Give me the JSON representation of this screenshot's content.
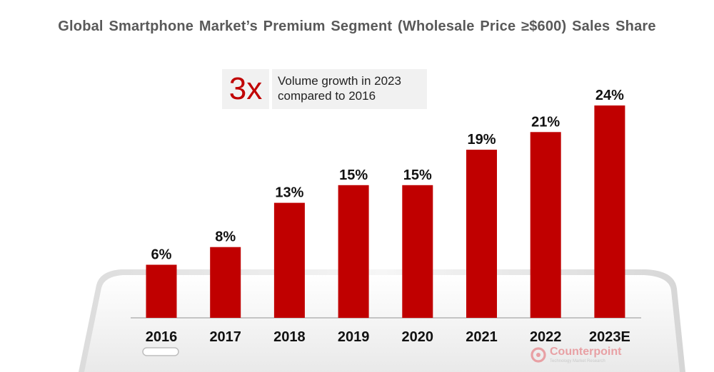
{
  "chart_data": {
    "type": "bar",
    "title": "Global Smartphone Market’s Premium Segment (Wholesale Price ≥$600) Sales Share",
    "categories": [
      "2016",
      "2017",
      "2018",
      "2019",
      "2020",
      "2021",
      "2022",
      "2023E"
    ],
    "values": [
      6,
      8,
      13,
      15,
      15,
      19,
      21,
      24
    ],
    "value_labels": [
      "6%",
      "8%",
      "13%",
      "15%",
      "15%",
      "19%",
      "21%",
      "24%"
    ],
    "unit": "%",
    "xlabel": "",
    "ylabel": "",
    "ylim": [
      0,
      24
    ],
    "grid": false,
    "legend": "none",
    "bar_color": "#c00000"
  },
  "callout": {
    "highlight": "3x",
    "line1": "Volume growth in 2023",
    "line2": "compared to 2016"
  },
  "logo": {
    "name": "Counterpoint",
    "tagline": "Technology Market Research",
    "color": "#e8a0a4"
  }
}
